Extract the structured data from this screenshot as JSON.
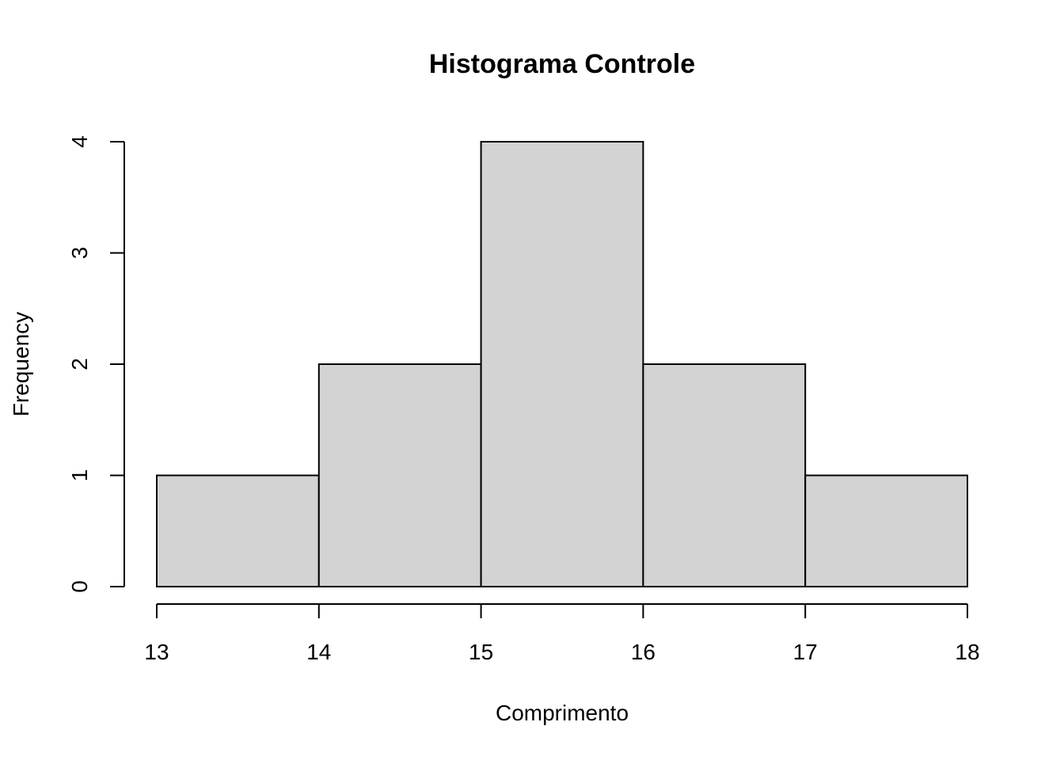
{
  "chart_data": {
    "type": "bar",
    "title": "Histograma Controle",
    "xlabel": "Comprimento",
    "ylabel": "Frequency",
    "bins": [
      {
        "from": 13,
        "to": 14,
        "count": 1
      },
      {
        "from": 14,
        "to": 15,
        "count": 2
      },
      {
        "from": 15,
        "to": 16,
        "count": 4
      },
      {
        "from": 16,
        "to": 17,
        "count": 2
      },
      {
        "from": 17,
        "to": 18,
        "count": 1
      }
    ],
    "xticks": [
      13,
      14,
      15,
      16,
      17,
      18
    ],
    "yticks": [
      0,
      1,
      2,
      3,
      4
    ],
    "xlim": [
      13,
      18
    ],
    "ylim": [
      0,
      4
    ],
    "grid": false,
    "bar_color": "#d3d3d3",
    "border_color": "#000000"
  }
}
